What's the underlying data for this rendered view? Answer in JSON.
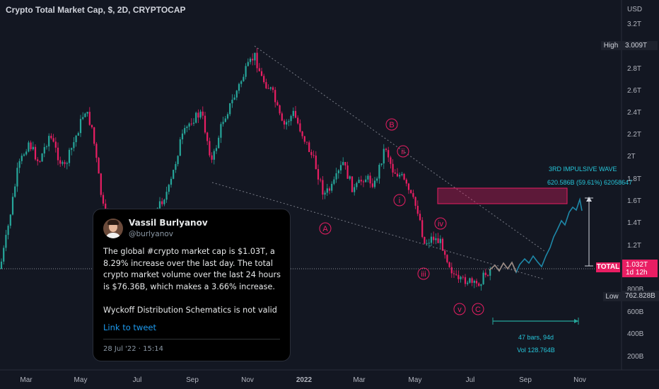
{
  "header": {
    "title": "Crypto Total Market Cap, $, 2D, CRYPTOCAP"
  },
  "chart_data": {
    "type": "candlestick",
    "symbol": "TOTAL",
    "price_axis": {
      "unit_label": "USD",
      "ticks": [
        "3.2T",
        "2.8T",
        "2.6T",
        "2.4T",
        "2.2T",
        "2T",
        "1.8T",
        "1.6T",
        "1.4T",
        "1.2T",
        "800B",
        "600B",
        "400B",
        "200B"
      ]
    },
    "time_axis": {
      "ticks": [
        "Mar",
        "May",
        "Jul",
        "Sep",
        "Nov",
        "2022",
        "Mar",
        "May",
        "Jul",
        "Sep",
        "Nov"
      ]
    },
    "markers": {
      "high": {
        "label": "High",
        "value": "3.009T"
      },
      "current": {
        "label": "TOTAL",
        "value": "1.032T",
        "countdown": "1d 12h"
      },
      "low": {
        "label": "Low",
        "value": "762.828B"
      }
    },
    "wave_labels": [
      "A",
      "B",
      "C",
      "i",
      "ii",
      "iii",
      "iv",
      "v"
    ],
    "annotations": {
      "impulse_title": "3RD IMPULSIVE WAVE",
      "impulse_measure": "620.586B (59.61%) 62058647",
      "range_bars": "47 bars, 94d",
      "range_vol": "Vol 128.764B"
    },
    "colors": {
      "up": "#26a69a",
      "down": "#e91e63",
      "background": "#131722",
      "projection": "#1e88a8",
      "zone": "#c2185b"
    }
  },
  "tweet": {
    "author_name": "Vassil Burlyanov",
    "author_handle": "@burlyanov",
    "body": "The global #crypto market cap is $1.03T, a 8.29% increase over the last day. The total crypto market volume over the last 24 hours is $76.36B, which makes a 3.66% increase.\n\nWyckoff Distribution Schematics is not valid",
    "link_text": "Link to tweet",
    "date": "28 Jul '22 · 15:14"
  }
}
